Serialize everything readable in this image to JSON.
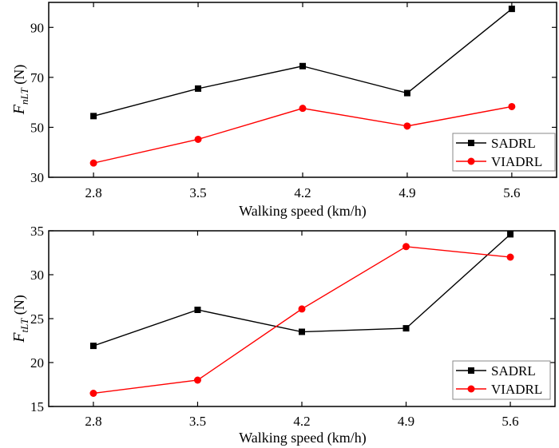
{
  "chart_data": [
    {
      "type": "line",
      "id": "top",
      "title": "",
      "xlabel": "Walking speed (km/h)",
      "ylabel": {
        "main": "F",
        "sub": "nLT",
        "unit": " (N)"
      },
      "x": [
        2.8,
        3.5,
        4.2,
        4.9,
        5.6
      ],
      "x_tick_labels": [
        "2.8",
        "3.5",
        "4.2",
        "4.9",
        "5.6"
      ],
      "xlim": [
        2.5,
        5.9
      ],
      "ylim": [
        30,
        100
      ],
      "y_ticks": [
        30,
        50,
        70,
        90
      ],
      "y_tick_labels": [
        "30",
        "50",
        "70",
        "90"
      ],
      "grid": false,
      "legend_position": "bottom-right",
      "series": [
        {
          "name": "SADRL",
          "color": "#000000",
          "marker": "square",
          "values": [
            54.5,
            65.5,
            74.5,
            63.7,
            97.4
          ]
        },
        {
          "name": "VIADRL",
          "color": "#ff0000",
          "marker": "circle",
          "values": [
            35.7,
            45.2,
            57.6,
            50.5,
            58.3
          ]
        }
      ]
    },
    {
      "type": "line",
      "id": "bottom",
      "title": "",
      "xlabel": "Walking speed (km/h)",
      "ylabel": {
        "main": "F",
        "sub": "tLT",
        "unit": " (N)"
      },
      "x": [
        2.8,
        3.5,
        4.2,
        4.9,
        5.6
      ],
      "x_tick_labels": [
        "2.8",
        "3.5",
        "4.2",
        "4.9",
        "5.6"
      ],
      "xlim": [
        2.5,
        5.9
      ],
      "ylim": [
        15,
        35
      ],
      "y_ticks": [
        15,
        20,
        25,
        30,
        35
      ],
      "y_tick_labels": [
        "15",
        "20",
        "25",
        "30",
        "35"
      ],
      "grid": false,
      "legend_position": "bottom-right",
      "series": [
        {
          "name": "SADRL",
          "color": "#000000",
          "marker": "square",
          "values": [
            21.9,
            26.0,
            23.5,
            23.9,
            34.6
          ]
        },
        {
          "name": "VIADRL",
          "color": "#ff0000",
          "marker": "circle",
          "values": [
            16.5,
            18.0,
            26.1,
            33.2,
            32.0
          ]
        }
      ]
    }
  ]
}
